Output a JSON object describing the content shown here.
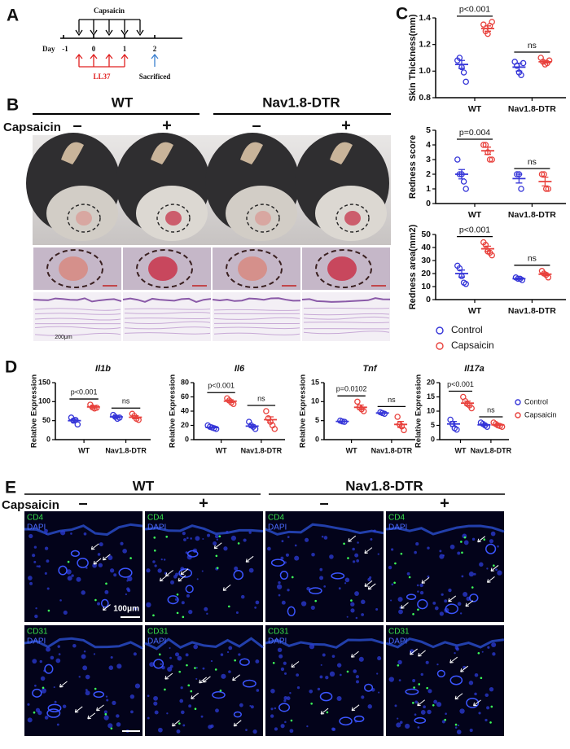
{
  "panel_labels": [
    "A",
    "B",
    "C",
    "D",
    "E"
  ],
  "panel_a": {
    "injection": "Capsaicin",
    "day_label": "Day",
    "days": [
      "-1",
      "0",
      "1",
      "2"
    ],
    "treatment": "LL37",
    "endpoint": "Sacrificed"
  },
  "panel_b": {
    "groups": [
      "WT",
      "Nav1.8-DTR"
    ],
    "treatment": "Capsaicin",
    "conditions": [
      "–",
      "+",
      "–",
      "+"
    ],
    "scale_bar": "200μm"
  },
  "panel_e": {
    "groups": [
      "WT",
      "Nav1.8-DTR"
    ],
    "treatment": "Capsaicin",
    "conditions": [
      "–",
      "+",
      "–",
      "+"
    ],
    "rows": [
      [
        "CD4",
        "DAPI"
      ],
      [
        "CD31",
        "DAPI"
      ]
    ],
    "scale_bar": "100μm"
  },
  "chart_data": [
    {
      "type": "dotplot",
      "ylabel": "Skin Thickness(mm)",
      "categories": [
        "WT",
        "Nav1.8-DTR"
      ],
      "ylim": [
        0.8,
        1.4
      ],
      "yticks": [
        0.8,
        {
          "value": 1.0,
          "label": "1.0"
        },
        1.2,
        1.4
      ],
      "annotations": [
        "p<0.001",
        "ns"
      ],
      "series": [
        {
          "color": "#3535d8",
          "values": [
            [
              1.08,
              1.1,
              1.03,
              0.99,
              0.92
            ],
            [
              1.07,
              1.04,
              0.99,
              0.97,
              1.06
            ]
          ],
          "mean": [
            1.05,
            1.03
          ],
          "sem": [
            0.03,
            0.03
          ]
        },
        {
          "color": "#e8413c",
          "values": [
            [
              1.35,
              1.3,
              1.28,
              1.34,
              1.37
            ],
            [
              1.1,
              1.07,
              1.05,
              1.06,
              1.08
            ]
          ],
          "mean": [
            1.32,
            1.07
          ],
          "sem": [
            0.02,
            0.01
          ]
        }
      ]
    },
    {
      "type": "dotplot",
      "ylabel": "Redness score",
      "categories": [
        "WT",
        "Nav1.8-DTR"
      ],
      "ylim": [
        0,
        5
      ],
      "yticks": [
        0,
        1,
        2,
        3,
        4,
        5
      ],
      "annotations": [
        "p=0.004",
        "ns"
      ],
      "series": [
        {
          "color": "#3535d8",
          "values": [
            [
              3,
              2,
              2,
              1.5,
              1
            ],
            [
              2,
              2,
              1
            ]
          ],
          "mean": [
            2,
            1.7
          ],
          "sem": [
            0.32,
            0.3
          ]
        },
        {
          "color": "#e8413c",
          "values": [
            [
              4,
              4,
              3.5,
              3,
              3
            ],
            [
              2,
              2,
              1,
              1
            ]
          ],
          "mean": [
            3.6,
            1.5
          ],
          "sem": [
            0.25,
            0.3
          ]
        }
      ]
    },
    {
      "type": "dotplot",
      "ylabel": "Redness area(mm2)",
      "categories": [
        "WT",
        "Nav1.8-DTR"
      ],
      "ylim": [
        0,
        50
      ],
      "yticks": [
        0,
        10,
        20,
        30,
        40,
        50
      ],
      "annotations": [
        "p<0.001",
        "ns"
      ],
      "legend": "below",
      "series": [
        {
          "name": "Control",
          "color": "#3535d8",
          "values": [
            [
              26,
              24,
              18,
              13,
              12
            ],
            [
              17,
              16,
              16,
              15
            ]
          ],
          "mean": [
            20,
            16
          ],
          "sem": [
            2.7,
            0.5
          ]
        },
        {
          "name": "Capsaicin",
          "color": "#e8413c",
          "values": [
            [
              44,
              42,
              37,
              36,
              34
            ],
            [
              22,
              20,
              19,
              17
            ]
          ],
          "mean": [
            39,
            19.5
          ],
          "sem": [
            2,
            1
          ]
        }
      ]
    },
    {
      "type": "dotplot",
      "title": "Il1b",
      "ylabel": "Relative Expression",
      "categories": [
        "WT",
        "Nav1.8-DTR"
      ],
      "ylim": [
        0,
        150
      ],
      "yticks": [
        0,
        50,
        100,
        150
      ],
      "annotations": [
        "p<0.001",
        "ns"
      ],
      "series": [
        {
          "color": "#3535d8",
          "values": [
            [
              58,
              50,
              52,
              40
            ],
            [
              65,
              60,
              55,
              58
            ]
          ],
          "mean": [
            50,
            60
          ],
          "sem": [
            4,
            3
          ]
        },
        {
          "color": "#e8413c",
          "values": [
            [
              92,
              85,
              82,
              84
            ],
            [
              68,
              62,
              55,
              52
            ]
          ],
          "mean": [
            86,
            59
          ],
          "sem": [
            3,
            4
          ]
        }
      ]
    },
    {
      "type": "dotplot",
      "title": "Il6",
      "ylabel": "Relative Expression",
      "categories": [
        "WT",
        "Nav1.8-DTR"
      ],
      "ylim": [
        0,
        80
      ],
      "yticks": [
        0,
        20,
        40,
        60,
        80
      ],
      "annotations": [
        "p<0.001",
        "ns"
      ],
      "series": [
        {
          "color": "#3535d8",
          "values": [
            [
              20,
              18,
              17,
              16,
              15
            ],
            [
              25,
              20,
              18,
              15
            ]
          ],
          "mean": [
            17,
            19
          ],
          "sem": [
            1,
            2
          ]
        },
        {
          "color": "#e8413c",
          "values": [
            [
              58,
              55,
              52,
              50
            ],
            [
              40,
              30,
              25,
              20,
              15
            ]
          ],
          "mean": [
            54,
            28
          ],
          "sem": [
            2,
            4
          ]
        }
      ]
    },
    {
      "type": "dotplot",
      "title": "Tnf",
      "ylabel": "Relative Expression",
      "categories": [
        "WT",
        "Nav1.8-DTR"
      ],
      "ylim": [
        0,
        15
      ],
      "yticks": [
        0,
        5,
        10,
        15
      ],
      "annotations": [
        "p=0.0102",
        "ns"
      ],
      "series": [
        {
          "color": "#3535d8",
          "values": [
            [
              5,
              4.8,
              4.7
            ],
            [
              7.2,
              7,
              6.8
            ]
          ],
          "mean": [
            4.8,
            7
          ],
          "sem": [
            0.1,
            0.1
          ]
        },
        {
          "color": "#e8413c",
          "values": [
            [
              10,
              8.5,
              8,
              7.5
            ],
            [
              6,
              4,
              3.5,
              2.5
            ]
          ],
          "mean": [
            8.5,
            4
          ],
          "sem": [
            0.6,
            0.8
          ]
        }
      ]
    },
    {
      "type": "dotplot",
      "title": "Il17a",
      "ylabel": "Relative Expression",
      "categories": [
        "WT",
        "Nav1.8-DTR"
      ],
      "ylim": [
        0,
        20
      ],
      "yticks": [
        0,
        5,
        10,
        15,
        20
      ],
      "annotations": [
        "p<0.001",
        "ns"
      ],
      "legend": "right",
      "series": [
        {
          "name": "Control",
          "color": "#3535d8",
          "values": [
            [
              7,
              5.5,
              4,
              3.5
            ],
            [
              6,
              5.5,
              5,
              4.5
            ]
          ],
          "mean": [
            5.5,
            5.2
          ],
          "sem": [
            0.9,
            0.3
          ]
        },
        {
          "name": "Capsaicin",
          "color": "#e8413c",
          "values": [
            [
              15,
              13.5,
              12.5,
              12,
              11
            ],
            [
              6,
              5.5,
              5,
              4.8,
              4.5
            ]
          ],
          "mean": [
            12.8,
            5.2
          ],
          "sem": [
            0.7,
            0.3
          ]
        }
      ]
    }
  ]
}
